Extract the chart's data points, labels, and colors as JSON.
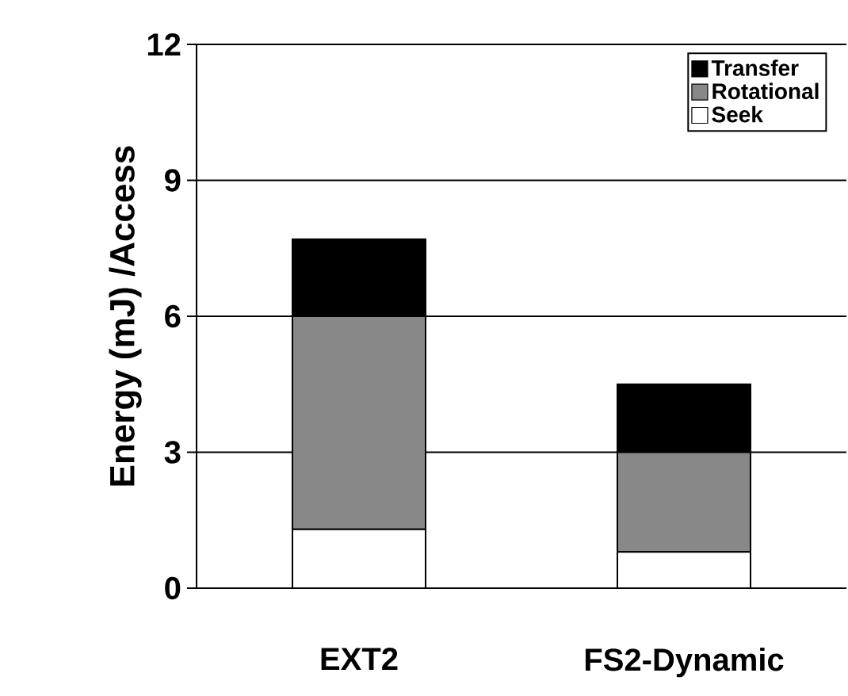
{
  "chart_data": {
    "type": "bar",
    "stacked": true,
    "ylabel": "Energy (mJ) /Access",
    "categories": [
      "EXT2",
      "FS2-Dynamic"
    ],
    "series": [
      {
        "name": "Seek",
        "color": "#ffffff",
        "values": [
          1.3,
          0.8
        ]
      },
      {
        "name": "Rotational",
        "color": "#888888",
        "values": [
          4.7,
          2.2
        ]
      },
      {
        "name": "Transfer",
        "color": "#000000",
        "values": [
          1.7,
          1.5
        ]
      }
    ],
    "ylim": [
      0,
      12
    ],
    "yticks": [
      0,
      3,
      6,
      9,
      12
    ],
    "grid": "y",
    "legend": "top right"
  }
}
